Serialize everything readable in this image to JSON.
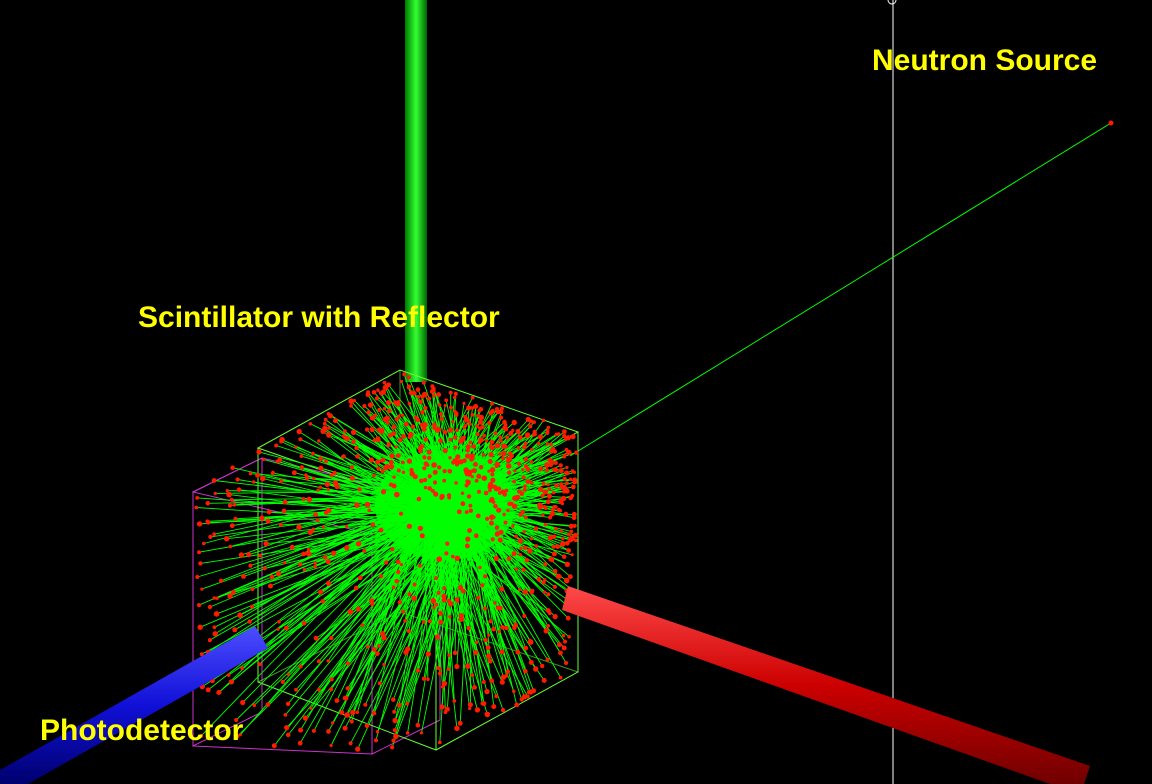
{
  "labels": {
    "neutron_source": "Neutron Source",
    "scintillator": "Scintillator with Reflector",
    "photodetector": "Photodetector"
  },
  "colors": {
    "background": "#000000",
    "label": "#ffff00",
    "y_axis": "#00e600",
    "x_axis": "#e00000",
    "z_axis": "#1414e6",
    "tracks": "#00ff00",
    "hits": "#ff1a00",
    "scintillator_outline": "#66ff33",
    "reflector_outline": "#cc33cc",
    "vertical_line": "#ffffff"
  }
}
